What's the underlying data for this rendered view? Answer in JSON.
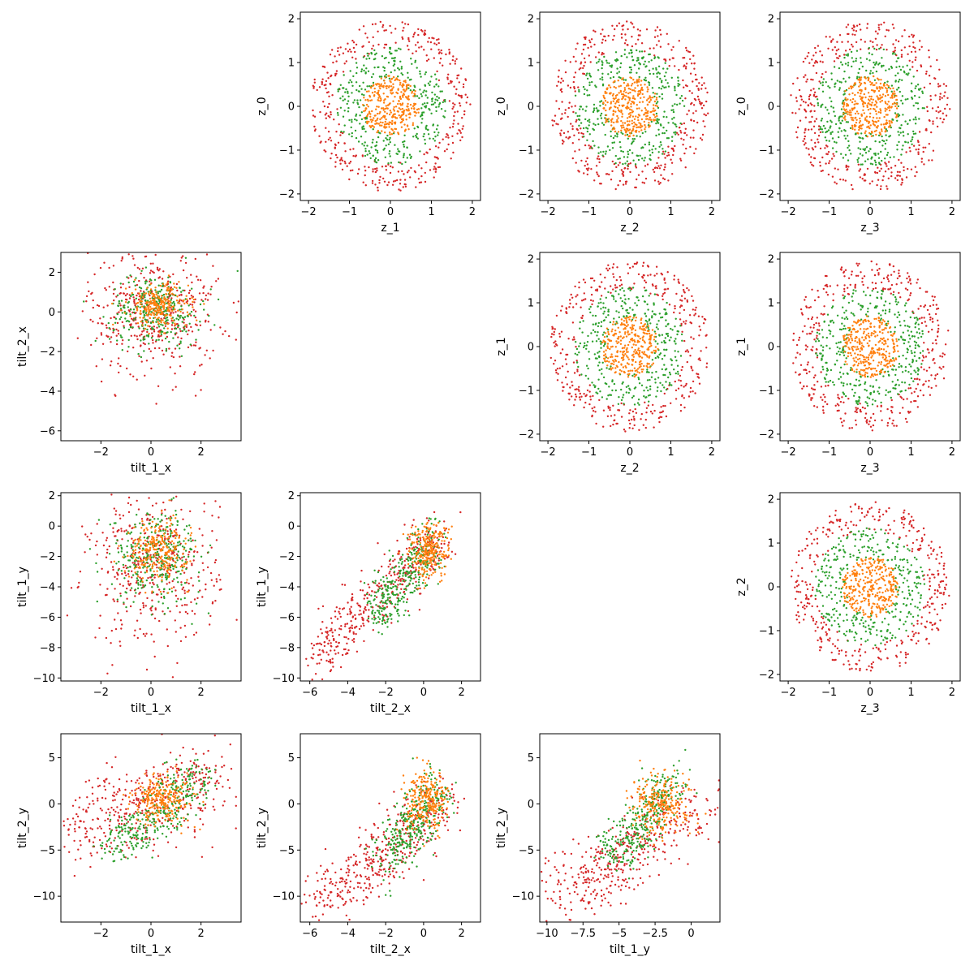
{
  "colors": {
    "red": "#d62728",
    "green": "#2ca02c",
    "orange": "#ff7f0e",
    "blue": "#1f77b4"
  },
  "chart_data": [
    {
      "type": "scatter",
      "name": "z_1-z_0",
      "row": 0,
      "col": 1,
      "xlabel": "z_1",
      "ylabel": "z_0",
      "xlim": [
        -2.2,
        2.2
      ],
      "ylim": [
        -2.15,
        2.15
      ],
      "xticks": [
        -2,
        -1,
        0,
        1,
        2
      ],
      "yticks": [
        -2,
        -1,
        0,
        1,
        2
      ],
      "series": [
        {
          "color": "red",
          "shape": "disk",
          "r_in": 1.3,
          "r_out": 1.95,
          "n": 380
        },
        {
          "color": "green",
          "shape": "disk",
          "r_in": 0.6,
          "r_out": 1.35,
          "n": 350
        },
        {
          "color": "orange",
          "shape": "disk",
          "r_in": 0,
          "r_out": 0.7,
          "n": 320
        }
      ]
    },
    {
      "type": "scatter",
      "name": "z_2-z_0",
      "row": 0,
      "col": 2,
      "xlabel": "z_2",
      "ylabel": "z_0",
      "xlim": [
        -2.2,
        2.2
      ],
      "ylim": [
        -2.15,
        2.15
      ],
      "xticks": [
        -2,
        -1,
        0,
        1,
        2
      ],
      "yticks": [
        -2,
        -1,
        0,
        1,
        2
      ],
      "series": [
        {
          "color": "red",
          "shape": "disk",
          "r_in": 1.3,
          "r_out": 1.95,
          "n": 380
        },
        {
          "color": "green",
          "shape": "disk",
          "r_in": 0.6,
          "r_out": 1.35,
          "n": 350
        },
        {
          "color": "orange",
          "shape": "disk",
          "r_in": 0,
          "r_out": 0.7,
          "n": 320
        }
      ]
    },
    {
      "type": "scatter",
      "name": "z_3-z_0",
      "row": 0,
      "col": 3,
      "xlabel": "z_3",
      "ylabel": "z_0",
      "xlim": [
        -2.2,
        2.2
      ],
      "ylim": [
        -2.15,
        2.15
      ],
      "xticks": [
        -2,
        -1,
        0,
        1,
        2
      ],
      "yticks": [
        -2,
        -1,
        0,
        1,
        2
      ],
      "series": [
        {
          "color": "red",
          "shape": "disk",
          "r_in": 1.3,
          "r_out": 1.95,
          "n": 380
        },
        {
          "color": "green",
          "shape": "disk",
          "r_in": 0.6,
          "r_out": 1.35,
          "n": 350
        },
        {
          "color": "orange",
          "shape": "disk",
          "r_in": 0,
          "r_out": 0.7,
          "n": 320
        }
      ]
    },
    {
      "type": "scatter",
      "name": "tilt_1_x-tilt_2_x",
      "row": 1,
      "col": 0,
      "xlabel": "tilt_1_x",
      "ylabel": "tilt_2_x",
      "xlim": [
        -3.6,
        3.6
      ],
      "ylim": [
        -6.5,
        3.0
      ],
      "xticks": [
        -2,
        0,
        2
      ],
      "yticks": [
        -6,
        -4,
        -2,
        0,
        2
      ],
      "series": [
        {
          "color": "red",
          "shape": "gauss",
          "mx": 0.1,
          "my": 0.0,
          "sx": 1.3,
          "sy": 1.6,
          "n": 420
        },
        {
          "color": "green",
          "shape": "gauss",
          "mx": 0.2,
          "my": 0.1,
          "sx": 0.9,
          "sy": 0.9,
          "n": 320
        },
        {
          "color": "orange",
          "shape": "gauss",
          "mx": 0.3,
          "my": 0.3,
          "sx": 0.6,
          "sy": 0.55,
          "n": 250
        }
      ]
    },
    {
      "type": "scatter",
      "name": "z_2-z_1",
      "row": 1,
      "col": 2,
      "xlabel": "z_2",
      "ylabel": "z_1",
      "xlim": [
        -2.2,
        2.2
      ],
      "ylim": [
        -2.15,
        2.15
      ],
      "xticks": [
        -2,
        -1,
        0,
        1,
        2
      ],
      "yticks": [
        -2,
        -1,
        0,
        1,
        2
      ],
      "series": [
        {
          "color": "red",
          "shape": "disk",
          "r_in": 1.3,
          "r_out": 1.95,
          "n": 380
        },
        {
          "color": "green",
          "shape": "disk",
          "r_in": 0.6,
          "r_out": 1.35,
          "n": 350
        },
        {
          "color": "orange",
          "shape": "disk",
          "r_in": 0,
          "r_out": 0.7,
          "n": 320
        }
      ]
    },
    {
      "type": "scatter",
      "name": "z_3-z_1",
      "row": 1,
      "col": 3,
      "xlabel": "z_3",
      "ylabel": "z_1",
      "xlim": [
        -2.2,
        2.2
      ],
      "ylim": [
        -2.15,
        2.15
      ],
      "xticks": [
        -2,
        -1,
        0,
        1,
        2
      ],
      "yticks": [
        -2,
        -1,
        0,
        1,
        2
      ],
      "series": [
        {
          "color": "red",
          "shape": "disk",
          "r_in": 1.3,
          "r_out": 1.95,
          "n": 380
        },
        {
          "color": "green",
          "shape": "disk",
          "r_in": 0.6,
          "r_out": 1.35,
          "n": 350
        },
        {
          "color": "orange",
          "shape": "disk",
          "r_in": 0,
          "r_out": 0.7,
          "n": 320
        }
      ]
    },
    {
      "type": "scatter",
      "name": "tilt_1_x-tilt_1_y",
      "row": 2,
      "col": 0,
      "xlabel": "tilt_1_x",
      "ylabel": "tilt_1_y",
      "xlim": [
        -3.6,
        3.6
      ],
      "ylim": [
        -10.2,
        2.2
      ],
      "xticks": [
        -2,
        0,
        2
      ],
      "yticks": [
        -10,
        -8,
        -6,
        -4,
        -2,
        0,
        2
      ],
      "series": [
        {
          "color": "red",
          "shape": "gauss",
          "mx": 0.1,
          "my": -2.8,
          "sx": 1.3,
          "sy": 2.5,
          "n": 420
        },
        {
          "color": "green",
          "shape": "gauss",
          "mx": 0.2,
          "my": -2.0,
          "sx": 0.9,
          "sy": 1.5,
          "n": 320
        },
        {
          "color": "orange",
          "shape": "gauss",
          "mx": 0.3,
          "my": -1.6,
          "sx": 0.6,
          "sy": 1.0,
          "n": 250
        }
      ]
    },
    {
      "type": "scatter",
      "name": "tilt_2_x-tilt_1_y",
      "row": 2,
      "col": 1,
      "xlabel": "tilt_2_x",
      "ylabel": "tilt_1_y",
      "xlim": [
        -6.5,
        3.0
      ],
      "ylim": [
        -10.2,
        2.2
      ],
      "xticks": [
        -6,
        -4,
        -2,
        0,
        2
      ],
      "yticks": [
        -10,
        -8,
        -6,
        -4,
        -2,
        0,
        2
      ],
      "series": [
        {
          "color": "red",
          "shape": "band",
          "x0": -6.0,
          "y0": -9.0,
          "x1": 1.0,
          "y1": -0.5,
          "sx": 0.5,
          "sy": 1.0,
          "n": 420
        },
        {
          "color": "green",
          "shape": "band",
          "x0": -2.5,
          "y0": -5.5,
          "x1": 0.6,
          "y1": -1.2,
          "sx": 0.4,
          "sy": 0.9,
          "n": 320
        },
        {
          "color": "orange",
          "shape": "gauss",
          "mx": 0.3,
          "my": -1.6,
          "sx": 0.55,
          "sy": 0.9,
          "n": 250
        }
      ]
    },
    {
      "type": "scatter",
      "name": "z_3-z_2",
      "row": 2,
      "col": 3,
      "xlabel": "z_3",
      "ylabel": "z_2",
      "xlim": [
        -2.2,
        2.2
      ],
      "ylim": [
        -2.15,
        2.15
      ],
      "xticks": [
        -2,
        -1,
        0,
        1,
        2
      ],
      "yticks": [
        -2,
        -1,
        0,
        1,
        2
      ],
      "series": [
        {
          "color": "red",
          "shape": "disk",
          "r_in": 1.3,
          "r_out": 1.95,
          "n": 380
        },
        {
          "color": "green",
          "shape": "disk",
          "r_in": 0.6,
          "r_out": 1.35,
          "n": 350
        },
        {
          "color": "orange",
          "shape": "disk",
          "r_in": 0,
          "r_out": 0.7,
          "n": 320
        }
      ]
    },
    {
      "type": "scatter",
      "name": "tilt_1_x-tilt_2_y",
      "row": 3,
      "col": 0,
      "xlabel": "tilt_1_x",
      "ylabel": "tilt_2_y",
      "xlim": [
        -3.6,
        3.6
      ],
      "ylim": [
        -12.8,
        7.6
      ],
      "xticks": [
        -2,
        0,
        2
      ],
      "yticks": [
        -10,
        -5,
        0,
        5
      ],
      "series": [
        {
          "color": "red",
          "shape": "band",
          "x0": -3.0,
          "y0": -2.5,
          "x1": 2.8,
          "y1": 2.8,
          "sx": 0.4,
          "sy": 2.4,
          "n": 420
        },
        {
          "color": "green",
          "shape": "band",
          "x0": -1.5,
          "y0": -4.5,
          "x1": 2.0,
          "y1": 2.5,
          "sx": 0.4,
          "sy": 1.4,
          "n": 320
        },
        {
          "color": "orange",
          "shape": "gauss",
          "mx": 0.5,
          "my": 0.5,
          "sx": 0.6,
          "sy": 1.3,
          "n": 250
        }
      ]
    },
    {
      "type": "scatter",
      "name": "tilt_2_x-tilt_2_y",
      "row": 3,
      "col": 1,
      "xlabel": "tilt_2_x",
      "ylabel": "tilt_2_y",
      "xlim": [
        -6.5,
        3.0
      ],
      "ylim": [
        -12.8,
        7.6
      ],
      "xticks": [
        -6,
        -4,
        -2,
        0,
        2
      ],
      "yticks": [
        -10,
        -5,
        0,
        5
      ],
      "series": [
        {
          "color": "red",
          "shape": "band",
          "x0": -5.5,
          "y0": -10.5,
          "x1": 1.2,
          "y1": 0.2,
          "sx": 0.7,
          "sy": 1.8,
          "n": 420
        },
        {
          "color": "green",
          "shape": "band",
          "x0": -2.0,
          "y0": -6.0,
          "x1": 0.8,
          "y1": 1.5,
          "sx": 0.5,
          "sy": 1.5,
          "n": 320
        },
        {
          "color": "orange",
          "shape": "gauss",
          "mx": 0.2,
          "my": 0.3,
          "sx": 0.55,
          "sy": 1.6,
          "n": 250
        }
      ]
    },
    {
      "type": "scatter",
      "name": "tilt_1_y-tilt_2_y",
      "row": 3,
      "col": 2,
      "xlabel": "tilt_1_y",
      "ylabel": "tilt_2_y",
      "xlim": [
        -10.5,
        2.0
      ],
      "ylim": [
        -12.8,
        7.6
      ],
      "xticks": [
        -10.0,
        -7.5,
        -5.0,
        -2.5,
        0.0
      ],
      "yticks": [
        -10,
        -5,
        0,
        5
      ],
      "series": [
        {
          "color": "red",
          "shape": "band",
          "x0": -9.0,
          "y0": -10.0,
          "x1": 0.5,
          "y1": -0.3,
          "sx": 1.4,
          "sy": 1.8,
          "n": 420
        },
        {
          "color": "green",
          "shape": "band",
          "x0": -5.5,
          "y0": -6.0,
          "x1": -1.5,
          "y1": 2.0,
          "sx": 0.8,
          "sy": 1.4,
          "n": 320
        },
        {
          "color": "orange",
          "shape": "gauss",
          "mx": -2.0,
          "my": 0.0,
          "sx": 1.0,
          "sy": 1.6,
          "n": 250
        }
      ]
    }
  ]
}
